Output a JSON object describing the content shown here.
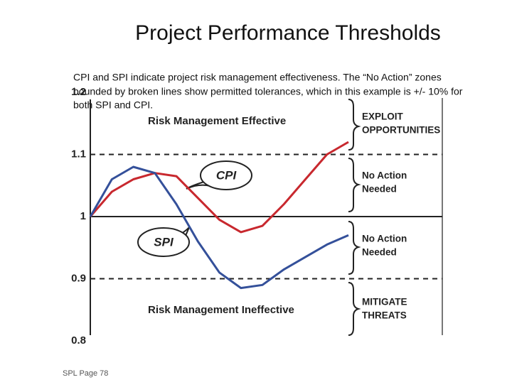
{
  "title": "Project Performance Thresholds",
  "caption": [
    "CPI and SPI indicate project risk management effectiveness.  The “No Action” zones",
    "bounded by broken lines show permitted tolerances, which in this example is +/- 10% for",
    "both SPI and CPI."
  ],
  "footer": "SPL    Page 78",
  "chart_data": {
    "type": "line",
    "categories": [
      null,
      null,
      null,
      null,
      null,
      null,
      null,
      null,
      null,
      null,
      null,
      null,
      null
    ],
    "series": [
      {
        "name": "CPI",
        "color": "#c8282e",
        "values": [
          1.0,
          1.04,
          1.06,
          1.07,
          1.065,
          1.03,
          0.995,
          0.975,
          0.985,
          1.02,
          1.06,
          1.1,
          1.12
        ]
      },
      {
        "name": "SPI",
        "color": "#34509a",
        "values": [
          1.0,
          1.06,
          1.08,
          1.07,
          1.02,
          0.96,
          0.91,
          0.885,
          0.89,
          0.915,
          0.935,
          0.955,
          0.97
        ]
      }
    ],
    "ylim": [
      0.8,
      1.2
    ],
    "yticks": [
      0.8,
      0.9,
      1.0,
      1.1,
      1.2
    ],
    "baseline": 1.0,
    "grid": true,
    "annotations": [
      "Risk Management Effective",
      "Risk Management Ineffective"
    ],
    "zones": [
      [
        "EXPLOIT",
        "OPPORTUNITIES"
      ],
      [
        "No Action",
        "Needed"
      ],
      [
        "No Action",
        "Needed"
      ],
      [
        "MITIGATE",
        "THREATS"
      ]
    ]
  }
}
